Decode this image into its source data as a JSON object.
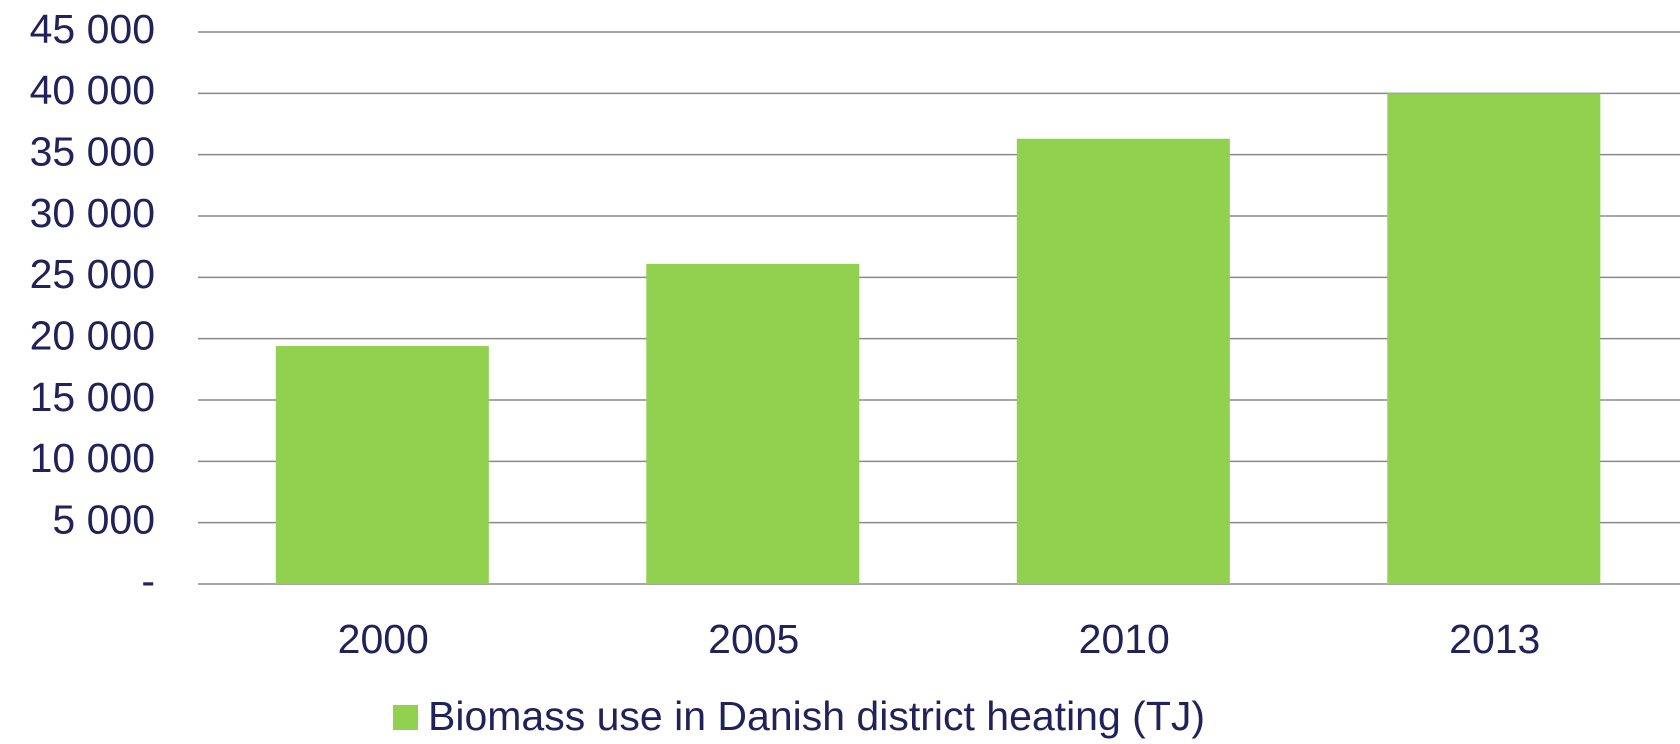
{
  "chart_data": {
    "type": "bar",
    "categories": [
      "2000",
      "2005",
      "2010",
      "2013"
    ],
    "series": [
      {
        "name": "Biomass use in Danish district heating (TJ)",
        "color": "#92d050",
        "values": [
          19400,
          26100,
          36300,
          40000
        ]
      }
    ],
    "ylim": [
      0,
      45000
    ],
    "yticks": [
      {
        "value": 0,
        "label": "-"
      },
      {
        "value": 5000,
        "label": "5 000"
      },
      {
        "value": 10000,
        "label": "10 000"
      },
      {
        "value": 15000,
        "label": "15 000"
      },
      {
        "value": 20000,
        "label": "20 000"
      },
      {
        "value": 25000,
        "label": "25 000"
      },
      {
        "value": 30000,
        "label": "30 000"
      },
      {
        "value": 35000,
        "label": "35 000"
      },
      {
        "value": 40000,
        "label": "40 000"
      },
      {
        "value": 45000,
        "label": "45 000"
      }
    ],
    "grid": true,
    "legend": "bottom"
  }
}
